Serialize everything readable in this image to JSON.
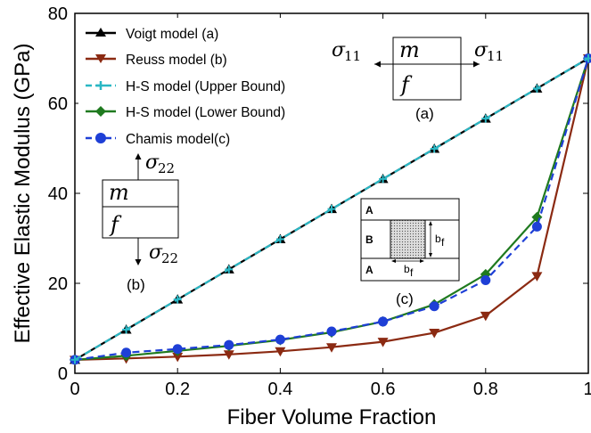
{
  "chart_data": {
    "type": "line",
    "xlabel": "Fiber Volume Fraction",
    "ylabel": "Effective Elastic Modulus (GPa)",
    "xlim": [
      0,
      1
    ],
    "ylim": [
      0,
      80
    ],
    "x_ticks": [
      0,
      0.2,
      0.4,
      0.6,
      0.8,
      1
    ],
    "x_tick_labels": [
      "0",
      "0.2",
      "0.4",
      "0.6",
      "0.8",
      "1"
    ],
    "y_ticks": [
      0,
      20,
      40,
      60,
      80
    ],
    "y_tick_labels": [
      "0",
      "20",
      "40",
      "60",
      "80"
    ],
    "grid": false,
    "legend_position": "top-left",
    "x": [
      0,
      0.1,
      0.2,
      0.3,
      0.4,
      0.5,
      0.6,
      0.7,
      0.8,
      0.9,
      1.0
    ],
    "series": [
      {
        "name": "Voigt model (a)",
        "color": "#000000",
        "marker": "triangle-up",
        "line": "solid",
        "values": [
          3,
          9.7,
          16.4,
          23.1,
          29.8,
          36.5,
          43.2,
          49.9,
          56.6,
          63.3,
          70
        ]
      },
      {
        "name": "Reuss model (b)",
        "color": "#8b2a12",
        "marker": "triangle-down",
        "line": "solid",
        "values": [
          3,
          3.3,
          3.7,
          4.2,
          4.9,
          5.8,
          7.0,
          9.0,
          12.8,
          21.6,
          70
        ]
      },
      {
        "name": "H-S model (Upper Bound)",
        "color": "#2ab7c4",
        "marker": "plus",
        "line": "dashed",
        "values": [
          3,
          9.7,
          16.4,
          23.1,
          29.8,
          36.5,
          43.2,
          49.9,
          56.6,
          63.3,
          70
        ]
      },
      {
        "name": "H-S model (Lower Bound)",
        "color": "#1f7a1f",
        "marker": "diamond",
        "line": "solid",
        "values": [
          3,
          3.9,
          5.0,
          6.1,
          7.4,
          9.1,
          11.5,
          15.3,
          22.0,
          34.7,
          70
        ]
      },
      {
        "name": "Chamis model(c)",
        "color": "#1e3fd6",
        "marker": "circle",
        "line": "dashed",
        "values": [
          3,
          4.6,
          5.4,
          6.3,
          7.5,
          9.3,
          11.5,
          14.9,
          20.7,
          32.6,
          70
        ]
      }
    ],
    "annotations": {
      "inset_a": {
        "top_label": "m",
        "bottom_label": "f",
        "stress_left": "σ",
        "stress_right": "σ",
        "subscript": "11",
        "caption": "(a)"
      },
      "inset_b": {
        "top_label": "m",
        "bottom_label": "f",
        "stress_top": "σ",
        "stress_bottom": "σ",
        "subscript": "22",
        "caption": "(b)"
      },
      "inset_c": {
        "rows": [
          "A",
          "B",
          "A"
        ],
        "dim_height": "b",
        "dim_width": "b",
        "dim_subscript": "f",
        "caption": "(c)"
      }
    }
  }
}
